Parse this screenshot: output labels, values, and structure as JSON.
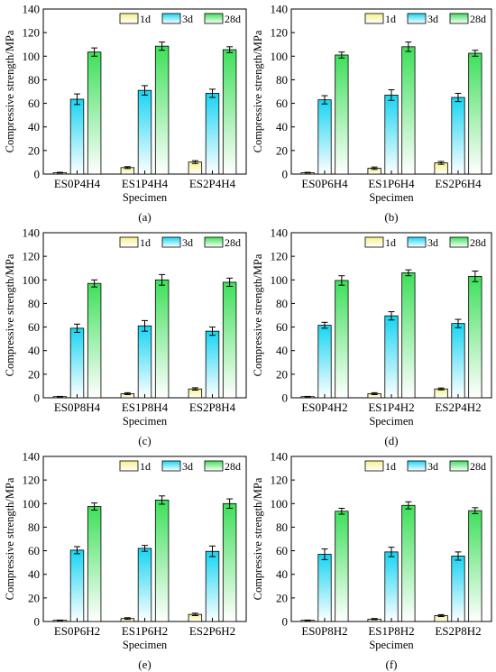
{
  "legend": [
    "1d",
    "3d",
    "28d"
  ],
  "ylabel": "Compressive strength/MPa",
  "xlabel": "Specimen",
  "yticks": [
    "0",
    "20",
    "40",
    "60",
    "80",
    "100",
    "120",
    "140"
  ],
  "ylim": [
    0,
    140
  ],
  "colors": {
    "1d": {
      "top": "#f5f18a",
      "bottom": "#ffffff"
    },
    "3d": {
      "top": "#19d4f2",
      "bottom": "#ffffff"
    },
    "28d": {
      "top": "#3ee05a",
      "bottom": "#ffffff"
    }
  },
  "panels": [
    {
      "label": "(a)",
      "categories": [
        "ES0P4H4",
        "ES1P4H4",
        "ES2P4H4"
      ],
      "series": [
        {
          "name": "1d",
          "values": [
            1.2,
            5.5,
            10.2
          ],
          "errors": [
            0.3,
            0.8,
            1.2
          ]
        },
        {
          "name": "3d",
          "values": [
            63.5,
            71.0,
            68.5
          ],
          "errors": [
            4.5,
            4.0,
            3.5
          ]
        },
        {
          "name": "28d",
          "values": [
            103.5,
            108.5,
            105.5
          ],
          "errors": [
            3.5,
            3.5,
            2.5
          ]
        }
      ]
    },
    {
      "label": "(b)",
      "categories": [
        "ES0P6H4",
        "ES1P6H4",
        "ES2P6H4"
      ],
      "series": [
        {
          "name": "1d",
          "values": [
            1.2,
            5.0,
            9.5
          ],
          "errors": [
            0.3,
            1.0,
            1.2
          ]
        },
        {
          "name": "3d",
          "values": [
            63.0,
            67.0,
            65.0
          ],
          "errors": [
            3.5,
            4.5,
            3.5
          ]
        },
        {
          "name": "28d",
          "values": [
            101.0,
            108.0,
            102.5
          ],
          "errors": [
            2.5,
            4.0,
            2.5
          ]
        }
      ]
    },
    {
      "label": "(c)",
      "categories": [
        "ES0P8H4",
        "ES1P8H4",
        "ES2P8H4"
      ],
      "series": [
        {
          "name": "1d",
          "values": [
            1.0,
            3.5,
            7.5
          ],
          "errors": [
            0.2,
            0.8,
            1.0
          ]
        },
        {
          "name": "3d",
          "values": [
            59.0,
            61.0,
            56.5
          ],
          "errors": [
            3.5,
            4.5,
            3.5
          ]
        },
        {
          "name": "28d",
          "values": [
            97.0,
            100.0,
            98.0
          ],
          "errors": [
            3.0,
            4.5,
            3.5
          ]
        }
      ]
    },
    {
      "label": "(d)",
      "categories": [
        "ES0P4H2",
        "ES1P4H2",
        "ES2P4H2"
      ],
      "series": [
        {
          "name": "1d",
          "values": [
            1.0,
            3.5,
            7.5
          ],
          "errors": [
            0.2,
            0.8,
            0.8
          ]
        },
        {
          "name": "3d",
          "values": [
            61.5,
            69.5,
            63.0
          ],
          "errors": [
            2.5,
            3.5,
            3.5
          ]
        },
        {
          "name": "28d",
          "values": [
            99.5,
            106.0,
            103.0
          ],
          "errors": [
            4.0,
            2.5,
            4.5
          ]
        }
      ]
    },
    {
      "label": "(e)",
      "categories": [
        "ES0P6H2",
        "ES1P6H2",
        "ES2P6H2"
      ],
      "series": [
        {
          "name": "1d",
          "values": [
            1.0,
            2.5,
            6.0
          ],
          "errors": [
            0.2,
            0.7,
            1.0
          ]
        },
        {
          "name": "3d",
          "values": [
            60.5,
            62.0,
            59.5
          ],
          "errors": [
            3.0,
            2.5,
            4.5
          ]
        },
        {
          "name": "28d",
          "values": [
            97.5,
            103.0,
            100.0
          ],
          "errors": [
            3.0,
            3.5,
            4.0
          ]
        }
      ]
    },
    {
      "label": "(f)",
      "categories": [
        "ES0P8H2",
        "ES1P8H2",
        "ES2P8H2"
      ],
      "series": [
        {
          "name": "1d",
          "values": [
            1.0,
            2.0,
            5.0
          ],
          "errors": [
            0.2,
            0.5,
            0.8
          ]
        },
        {
          "name": "3d",
          "values": [
            57.0,
            59.0,
            55.5
          ],
          "errors": [
            4.5,
            4.0,
            3.5
          ]
        },
        {
          "name": "28d",
          "values": [
            93.5,
            98.5,
            94.0
          ],
          "errors": [
            2.5,
            3.0,
            2.5
          ]
        }
      ]
    }
  ],
  "chart_data": [
    {
      "type": "bar",
      "categories": [
        "ES0P4H4",
        "ES1P4H4",
        "ES2P4H4"
      ],
      "xlabel": "Specimen",
      "ylabel": "Compressive strength/MPa",
      "ylim": [
        0,
        140
      ],
      "series": [
        {
          "name": "1d",
          "values": [
            1.2,
            5.5,
            10.2
          ]
        },
        {
          "name": "3d",
          "values": [
            63.5,
            71.0,
            68.5
          ]
        },
        {
          "name": "28d",
          "values": [
            103.5,
            108.5,
            105.5
          ]
        }
      ]
    },
    {
      "type": "bar",
      "categories": [
        "ES0P6H4",
        "ES1P6H4",
        "ES2P6H4"
      ],
      "xlabel": "Specimen",
      "ylabel": "Compressive strength/MPa",
      "ylim": [
        0,
        140
      ],
      "series": [
        {
          "name": "1d",
          "values": [
            1.2,
            5.0,
            9.5
          ]
        },
        {
          "name": "3d",
          "values": [
            63.0,
            67.0,
            65.0
          ]
        },
        {
          "name": "28d",
          "values": [
            101.0,
            108.0,
            102.5
          ]
        }
      ]
    },
    {
      "type": "bar",
      "categories": [
        "ES0P8H4",
        "ES1P8H4",
        "ES2P8H4"
      ],
      "xlabel": "Specimen",
      "ylabel": "Compressive strength/MPa",
      "ylim": [
        0,
        140
      ],
      "series": [
        {
          "name": "1d",
          "values": [
            1.0,
            3.5,
            7.5
          ]
        },
        {
          "name": "3d",
          "values": [
            59.0,
            61.0,
            56.5
          ]
        },
        {
          "name": "28d",
          "values": [
            97.0,
            100.0,
            98.0
          ]
        }
      ]
    },
    {
      "type": "bar",
      "categories": [
        "ES0P4H2",
        "ES1P4H2",
        "ES2P4H2"
      ],
      "xlabel": "Specimen",
      "ylabel": "Compressive strength/MPa",
      "ylim": [
        0,
        140
      ],
      "series": [
        {
          "name": "1d",
          "values": [
            1.0,
            3.5,
            7.5
          ]
        },
        {
          "name": "3d",
          "values": [
            61.5,
            69.5,
            63.0
          ]
        },
        {
          "name": "28d",
          "values": [
            99.5,
            106.0,
            103.0
          ]
        }
      ]
    },
    {
      "type": "bar",
      "categories": [
        "ES0P6H2",
        "ES1P6H2",
        "ES2P6H2"
      ],
      "xlabel": "Specimen",
      "ylabel": "Compressive strength/MPa",
      "ylim": [
        0,
        140
      ],
      "series": [
        {
          "name": "1d",
          "values": [
            1.0,
            2.5,
            6.0
          ]
        },
        {
          "name": "3d",
          "values": [
            60.5,
            62.0,
            59.5
          ]
        },
        {
          "name": "28d",
          "values": [
            97.5,
            103.0,
            100.0
          ]
        }
      ]
    },
    {
      "type": "bar",
      "categories": [
        "ES0P8H2",
        "ES1P8H2",
        "ES2P8H2"
      ],
      "xlabel": "Specimen",
      "ylabel": "Compressive strength/MPa",
      "ylim": [
        0,
        140
      ],
      "series": [
        {
          "name": "1d",
          "values": [
            1.0,
            2.0,
            5.0
          ]
        },
        {
          "name": "3d",
          "values": [
            57.0,
            59.0,
            55.5
          ]
        },
        {
          "name": "28d",
          "values": [
            93.5,
            98.5,
            94.0
          ]
        }
      ]
    }
  ]
}
